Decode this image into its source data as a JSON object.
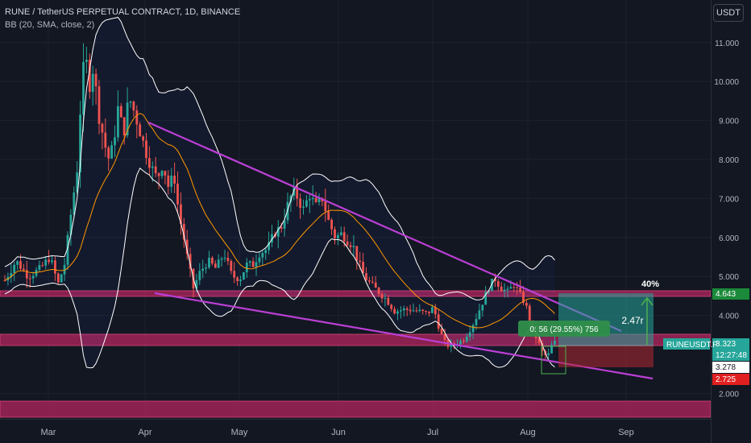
{
  "header": {
    "title": "RUNE / TetherUS PERPETUAL CONTRACT, 1D, BINANCE",
    "indicator": "BB (20, SMA, close, 2)"
  },
  "currency_button": "USDT",
  "chart_data": {
    "type": "candlestick",
    "symbol_label": "RUNEUSDT.P",
    "x_ticks": [
      "Mar",
      "Apr",
      "May",
      "Jun",
      "Jul",
      "Aug",
      "Sep"
    ],
    "y_ticks": [
      "11.000",
      "10.000",
      "9.000",
      "8.000",
      "7.000",
      "6.000",
      "5.000",
      "4.000",
      "2.000"
    ],
    "y_range": [
      1.5,
      11.8
    ],
    "price_labels": {
      "zone_top": "4.643",
      "last": "3.323",
      "countdown": "12:27:48",
      "low_mark": "3.278",
      "stop": "2.725"
    },
    "annotations": {
      "percent": "40%",
      "rr": "2.47r",
      "gain_box": "0: 56 (29.55%) 756"
    },
    "colors": {
      "up": "#26a69a",
      "down": "#ef5350",
      "basis": "#ff9800",
      "bands": "#ffffff",
      "trendline": "#bb3fd4",
      "zone": "#b8255f",
      "target": "#26a69a"
    }
  }
}
